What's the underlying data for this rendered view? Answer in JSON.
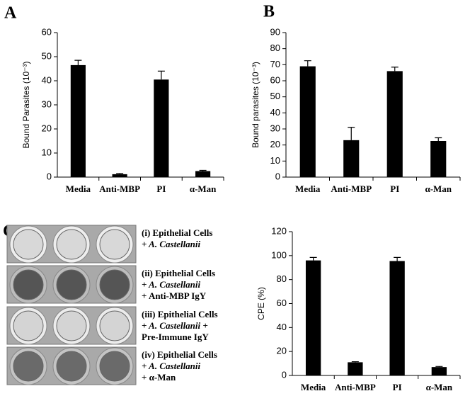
{
  "chart_data": [
    {
      "type": "bar",
      "panel": "A",
      "y_label": "Bound Parasites (10⁻³)",
      "categories": [
        "Media",
        "Anti-MBP",
        "PI",
        "α-Man"
      ],
      "values": [
        46.5,
        1.2,
        40.5,
        2.5
      ],
      "errors": [
        2,
        0.3,
        3.5,
        0.3
      ],
      "color": "#000000",
      "ylim": [
        0,
        60
      ],
      "yticks": [
        0,
        10,
        20,
        30,
        40,
        50,
        60
      ]
    },
    {
      "type": "bar",
      "panel": "B",
      "y_label": "Bound parasites (10⁻³)",
      "categories": [
        "Media",
        "Anti-MBP",
        "PI",
        "α-Man"
      ],
      "values": [
        69,
        23,
        66,
        22.5
      ],
      "errors": [
        3.5,
        8,
        2.5,
        2
      ],
      "color": "#000000",
      "ylim": [
        0,
        90
      ],
      "yticks": [
        0,
        10,
        20,
        30,
        40,
        50,
        60,
        70,
        80,
        90
      ]
    },
    {
      "type": "bar",
      "y_label": "CPE (%)",
      "categories": [
        "Media",
        "Anti-MBP",
        "PI",
        "α-Man"
      ],
      "values": [
        96,
        11,
        95.5,
        7
      ],
      "errors": [
        2.5,
        0.5,
        3,
        0.5
      ],
      "color": "#000000",
      "ylim": [
        0,
        120
      ],
      "yticks": [
        0,
        20,
        40,
        60,
        80,
        100,
        120
      ]
    }
  ],
  "plates": {
    "panel": "C",
    "rows": [
      {
        "lines": [
          {
            "text": "(i) Epithelial Cells",
            "italic": false
          },
          {
            "text": "+ A. Castellanii",
            "italic": true
          }
        ]
      },
      {
        "lines": [
          {
            "text": "(ii) Epithelial Cells",
            "italic": false
          },
          {
            "text": "+ A. Castellanii",
            "italic": true
          },
          {
            "text": "+ Anti-MBP IgY",
            "italic": false
          }
        ]
      },
      {
        "lines": [
          {
            "text": "(iii) Epithelial Cells",
            "italic": false
          },
          {
            "text": "+ A. Castellanii +",
            "italic": true
          },
          {
            "text": "Pre-Immune IgY",
            "italic": false
          }
        ]
      },
      {
        "lines": [
          {
            "text": "(iv) Epithelial Cells",
            "italic": false
          },
          {
            "text": "+ A. Castellanii",
            "italic": true
          },
          {
            "text": "+ α-Man",
            "italic": false
          }
        ]
      }
    ]
  }
}
